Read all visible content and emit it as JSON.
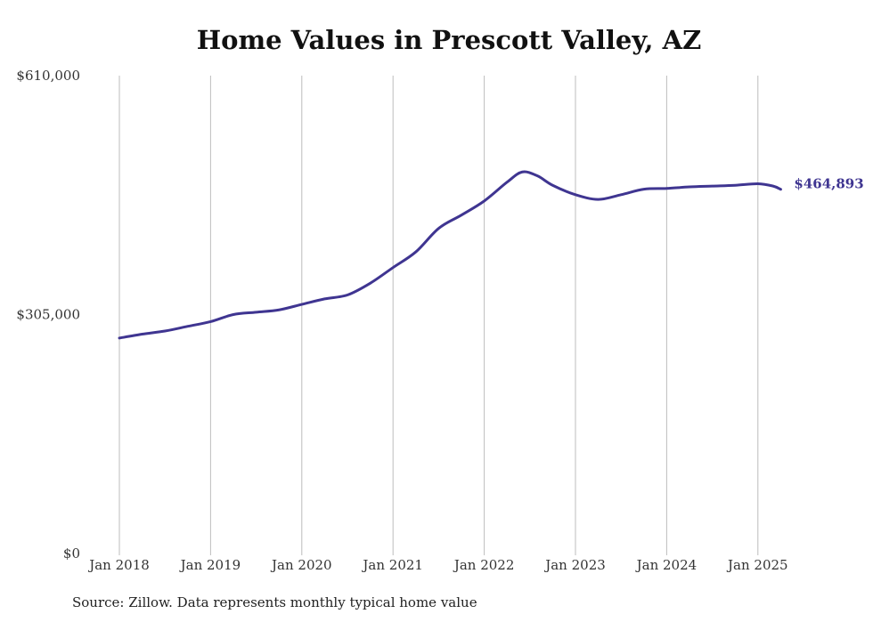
{
  "chart_data": {
    "type": "line",
    "title": "Home Values in Prescott Valley, AZ",
    "xlabel": "",
    "ylabel": "",
    "ylim": [
      0,
      610000
    ],
    "y_ticks": [
      "$0",
      "$305,000",
      "$610,000"
    ],
    "x_ticks": [
      "Jan 2018",
      "Jan 2019",
      "Jan 2020",
      "Jan 2021",
      "Jan 2022",
      "Jan 2023",
      "Jan 2024",
      "Jan 2025"
    ],
    "grid": "vertical",
    "series": [
      {
        "color": "#3f3591",
        "points": [
          [
            "2018-01",
            275000
          ],
          [
            "2018-04",
            280000
          ],
          [
            "2018-07",
            284000
          ],
          [
            "2018-10",
            290000
          ],
          [
            "2019-01",
            296000
          ],
          [
            "2019-04",
            305000
          ],
          [
            "2019-07",
            308000
          ],
          [
            "2019-10",
            311000
          ],
          [
            "2020-01",
            318000
          ],
          [
            "2020-04",
            325000
          ],
          [
            "2020-07",
            330000
          ],
          [
            "2020-10",
            345000
          ],
          [
            "2021-01",
            365000
          ],
          [
            "2021-04",
            385000
          ],
          [
            "2021-07",
            415000
          ],
          [
            "2021-10",
            432000
          ],
          [
            "2022-01",
            450000
          ],
          [
            "2022-04",
            474000
          ],
          [
            "2022-06",
            487000
          ],
          [
            "2022-08",
            482000
          ],
          [
            "2022-10",
            470000
          ],
          [
            "2023-01",
            458000
          ],
          [
            "2023-04",
            452000
          ],
          [
            "2023-07",
            458000
          ],
          [
            "2023-10",
            465000
          ],
          [
            "2024-01",
            466000
          ],
          [
            "2024-04",
            468000
          ],
          [
            "2024-07",
            469000
          ],
          [
            "2024-10",
            470000
          ],
          [
            "2025-01",
            472000
          ],
          [
            "2025-03",
            469000
          ],
          [
            "2025-04",
            464893
          ]
        ],
        "end_label": "$464,893"
      }
    ]
  },
  "source_note": "Source: Zillow. Data represents monthly typical home value"
}
